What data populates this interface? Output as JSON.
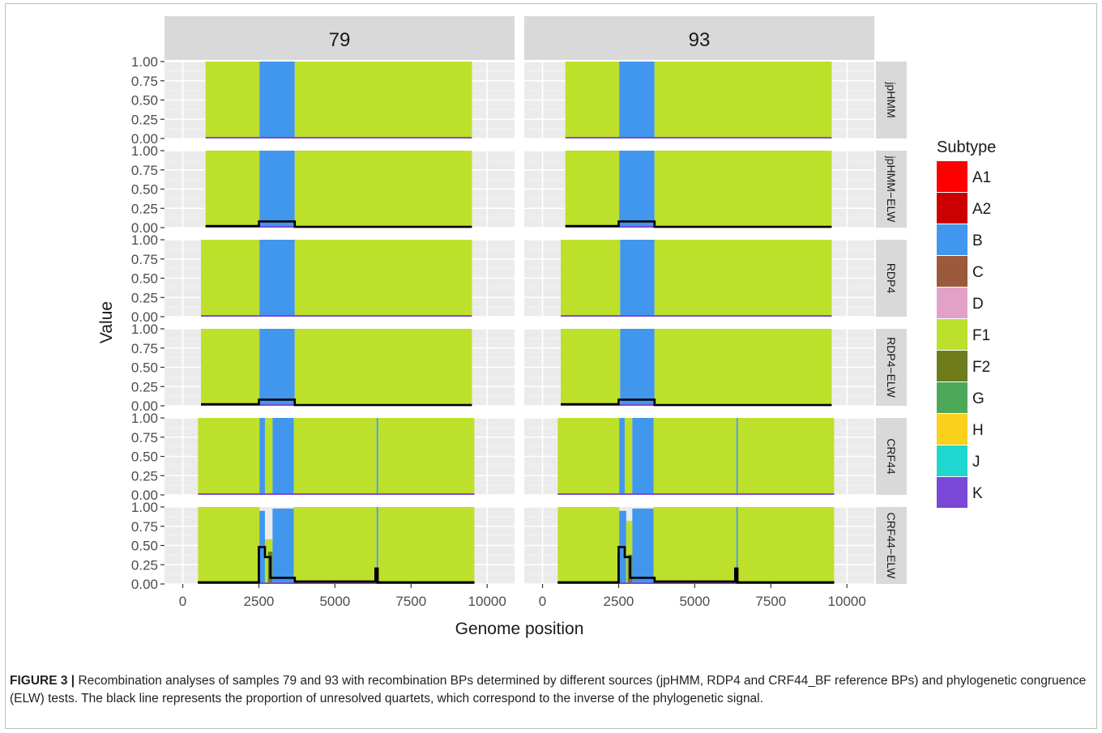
{
  "chart_data": {
    "type": "area",
    "facet_columns": [
      "79",
      "93"
    ],
    "facet_rows": [
      "jpHMM",
      "jpHMM−ELW",
      "RDP4",
      "RDP4−ELW",
      "CRF44",
      "CRF44−ELW"
    ],
    "xlabel": "Genome position",
    "ylabel": "Value",
    "xlim": [
      -600,
      10900
    ],
    "ylim": [
      0,
      1
    ],
    "x_ticks": [
      0,
      2500,
      5000,
      7500,
      10000
    ],
    "x_tick_labels": [
      "0",
      "2500",
      "5000",
      "7500",
      "10000"
    ],
    "y_ticks": [
      0,
      0.25,
      0.5,
      0.75,
      1.0
    ],
    "y_tick_labels": [
      "0.00",
      "0.25",
      "0.50",
      "0.75",
      "1.00"
    ],
    "grid": true,
    "legend": {
      "title": "Subtype",
      "position": "right",
      "entries": [
        {
          "label": "A1",
          "color": "#ff0000"
        },
        {
          "label": "A2",
          "color": "#cc0000"
        },
        {
          "label": "B",
          "color": "#4196ee"
        },
        {
          "label": "C",
          "color": "#9c5a3c"
        },
        {
          "label": "D",
          "color": "#e2a2c8"
        },
        {
          "label": "F1",
          "color": "#bde02a"
        },
        {
          "label": "F2",
          "color": "#6e7c1c"
        },
        {
          "label": "G",
          "color": "#4ea85a"
        },
        {
          "label": "H",
          "color": "#f9d01a"
        },
        {
          "label": "J",
          "color": "#20d6d0"
        },
        {
          "label": "K",
          "color": "#7b47d6"
        }
      ]
    },
    "panels": [
      {
        "row": "jpHMM",
        "col": "79",
        "range": [
          750,
          9500
        ],
        "k_value": 0.02,
        "segments": [
          {
            "start": 750,
            "end": 2520,
            "subtype": "F1"
          },
          {
            "start": 2520,
            "end": 3680,
            "subtype": "B"
          },
          {
            "start": 3680,
            "end": 9500,
            "subtype": "F1"
          }
        ],
        "black_line": []
      },
      {
        "row": "jpHMM",
        "col": "93",
        "range": [
          750,
          9500
        ],
        "k_value": 0.02,
        "segments": [
          {
            "start": 750,
            "end": 2520,
            "subtype": "F1"
          },
          {
            "start": 2520,
            "end": 3680,
            "subtype": "B"
          },
          {
            "start": 3680,
            "end": 9500,
            "subtype": "F1"
          }
        ],
        "black_line": []
      },
      {
        "row": "jpHMM−ELW",
        "col": "79",
        "range": [
          750,
          9500
        ],
        "k_value": 0.02,
        "segments": [
          {
            "start": 750,
            "end": 2520,
            "subtype": "F1"
          },
          {
            "start": 2520,
            "end": 3680,
            "subtype": "B"
          },
          {
            "start": 3680,
            "end": 9500,
            "subtype": "F1"
          }
        ],
        "black_line": [
          [
            750,
            0.02
          ],
          [
            2500,
            0.02
          ],
          [
            2500,
            0.08
          ],
          [
            3680,
            0.08
          ],
          [
            3680,
            0.01
          ],
          [
            9500,
            0.01
          ]
        ]
      },
      {
        "row": "jpHMM−ELW",
        "col": "93",
        "range": [
          750,
          9500
        ],
        "k_value": 0.02,
        "segments": [
          {
            "start": 750,
            "end": 2520,
            "subtype": "F1"
          },
          {
            "start": 2520,
            "end": 3680,
            "subtype": "B"
          },
          {
            "start": 3680,
            "end": 9500,
            "subtype": "F1"
          }
        ],
        "black_line": [
          [
            750,
            0.02
          ],
          [
            2500,
            0.02
          ],
          [
            2500,
            0.08
          ],
          [
            3680,
            0.08
          ],
          [
            3680,
            0.01
          ],
          [
            9500,
            0.01
          ]
        ]
      },
      {
        "row": "RDP4",
        "col": "79",
        "range": [
          600,
          9500
        ],
        "k_value": 0.02,
        "segments": [
          {
            "start": 600,
            "end": 2520,
            "subtype": "F1"
          },
          {
            "start": 2520,
            "end": 3680,
            "subtype": "B"
          },
          {
            "start": 3680,
            "end": 9500,
            "subtype": "F1"
          }
        ],
        "black_line": []
      },
      {
        "row": "RDP4",
        "col": "93",
        "range": [
          600,
          9500
        ],
        "k_value": 0.02,
        "segments": [
          {
            "start": 600,
            "end": 2550,
            "subtype": "F1"
          },
          {
            "start": 2550,
            "end": 3680,
            "subtype": "B"
          },
          {
            "start": 3680,
            "end": 9500,
            "subtype": "F1"
          }
        ],
        "black_line": []
      },
      {
        "row": "RDP4−ELW",
        "col": "79",
        "range": [
          600,
          9500
        ],
        "k_value": 0.02,
        "segments": [
          {
            "start": 600,
            "end": 2520,
            "subtype": "F1"
          },
          {
            "start": 2520,
            "end": 3680,
            "subtype": "B"
          },
          {
            "start": 3680,
            "end": 9500,
            "subtype": "F1"
          }
        ],
        "black_line": [
          [
            600,
            0.02
          ],
          [
            2500,
            0.02
          ],
          [
            2500,
            0.08
          ],
          [
            3680,
            0.08
          ],
          [
            3680,
            0.01
          ],
          [
            9500,
            0.01
          ]
        ]
      },
      {
        "row": "RDP4−ELW",
        "col": "93",
        "range": [
          600,
          9500
        ],
        "k_value": 0.02,
        "segments": [
          {
            "start": 600,
            "end": 2550,
            "subtype": "F1"
          },
          {
            "start": 2550,
            "end": 3680,
            "subtype": "B"
          },
          {
            "start": 3680,
            "end": 9500,
            "subtype": "F1"
          }
        ],
        "black_line": [
          [
            600,
            0.02
          ],
          [
            2500,
            0.02
          ],
          [
            2500,
            0.08
          ],
          [
            3680,
            0.08
          ],
          [
            3680,
            0.01
          ],
          [
            9500,
            0.01
          ]
        ]
      },
      {
        "row": "CRF44",
        "col": "79",
        "range": [
          500,
          9580
        ],
        "k_value": 0.02,
        "segments": [
          {
            "start": 500,
            "end": 2520,
            "subtype": "F1"
          },
          {
            "start": 2520,
            "end": 2700,
            "subtype": "B"
          },
          {
            "start": 2700,
            "end": 2950,
            "subtype": "F1"
          },
          {
            "start": 2950,
            "end": 3650,
            "subtype": "B"
          },
          {
            "start": 3650,
            "end": 6370,
            "subtype": "F1"
          },
          {
            "start": 6370,
            "end": 6420,
            "subtype": "B"
          },
          {
            "start": 6420,
            "end": 9580,
            "subtype": "F1"
          }
        ],
        "black_line": []
      },
      {
        "row": "CRF44",
        "col": "93",
        "range": [
          500,
          9580
        ],
        "k_value": 0.02,
        "segments": [
          {
            "start": 500,
            "end": 2520,
            "subtype": "F1"
          },
          {
            "start": 2520,
            "end": 2700,
            "subtype": "B"
          },
          {
            "start": 2700,
            "end": 2950,
            "subtype": "F1"
          },
          {
            "start": 2950,
            "end": 3650,
            "subtype": "B"
          },
          {
            "start": 3650,
            "end": 6370,
            "subtype": "F1"
          },
          {
            "start": 6370,
            "end": 6420,
            "subtype": "B"
          },
          {
            "start": 6420,
            "end": 9580,
            "subtype": "F1"
          }
        ],
        "black_line": []
      },
      {
        "row": "CRF44−ELW",
        "col": "79",
        "range": [
          500,
          9580
        ],
        "k_value": 0.02,
        "segments": [
          {
            "start": 500,
            "end": 2520,
            "subtype": "F1"
          },
          {
            "start": 2520,
            "end": 2700,
            "subtype": "B"
          },
          {
            "start": 2700,
            "end": 2950,
            "subtype": "F1"
          },
          {
            "start": 2950,
            "end": 3650,
            "subtype": "B"
          },
          {
            "start": 3650,
            "end": 6370,
            "subtype": "F1"
          },
          {
            "start": 6370,
            "end": 6420,
            "subtype": "B"
          },
          {
            "start": 6420,
            "end": 9580,
            "subtype": "F1"
          }
        ],
        "black_line": [
          [
            500,
            0.02
          ],
          [
            2500,
            0.02
          ],
          [
            2500,
            0.48
          ],
          [
            2700,
            0.48
          ],
          [
            2700,
            0.35
          ],
          [
            2880,
            0.35
          ],
          [
            2880,
            0.08
          ],
          [
            3680,
            0.08
          ],
          [
            3680,
            0.03
          ],
          [
            6330,
            0.03
          ],
          [
            6330,
            0.2
          ],
          [
            6400,
            0.2
          ],
          [
            6400,
            0.02
          ],
          [
            9580,
            0.02
          ]
        ]
      },
      {
        "row": "CRF44−ELW",
        "col": "93",
        "range": [
          500,
          9580
        ],
        "k_value": 0.02,
        "segments": [
          {
            "start": 500,
            "end": 2520,
            "subtype": "F1"
          },
          {
            "start": 2520,
            "end": 2700,
            "subtype": "B"
          },
          {
            "start": 2700,
            "end": 2950,
            "subtype": "F1"
          },
          {
            "start": 2950,
            "end": 3650,
            "subtype": "B"
          },
          {
            "start": 3650,
            "end": 6370,
            "subtype": "F1"
          },
          {
            "start": 6370,
            "end": 6420,
            "subtype": "B"
          },
          {
            "start": 6420,
            "end": 9580,
            "subtype": "F1"
          }
        ],
        "black_line": [
          [
            500,
            0.02
          ],
          [
            2500,
            0.02
          ],
          [
            2500,
            0.48
          ],
          [
            2700,
            0.48
          ],
          [
            2700,
            0.35
          ],
          [
            2880,
            0.35
          ],
          [
            2880,
            0.08
          ],
          [
            3680,
            0.08
          ],
          [
            3680,
            0.03
          ],
          [
            6330,
            0.03
          ],
          [
            6330,
            0.2
          ],
          [
            6400,
            0.2
          ],
          [
            6400,
            0.02
          ],
          [
            9580,
            0.02
          ]
        ]
      }
    ],
    "fine_details": {
      "crf44_elw_79": [
        {
          "start": 2520,
          "end": 2700,
          "value": 0.95,
          "subtype": "B"
        },
        {
          "start": 2700,
          "end": 2950,
          "value": 0.58,
          "subtype": "F1"
        },
        {
          "start": 2800,
          "end": 2950,
          "value": 0.42,
          "subtype": "F2"
        },
        {
          "start": 2950,
          "end": 3650,
          "value": 0.98,
          "subtype": "B"
        }
      ],
      "crf44_elw_93": [
        {
          "start": 2520,
          "end": 2750,
          "value": 0.95,
          "subtype": "B"
        },
        {
          "start": 2750,
          "end": 2950,
          "value": 0.82,
          "subtype": "F1"
        },
        {
          "start": 2800,
          "end": 2950,
          "value": 0.38,
          "subtype": "F2"
        },
        {
          "start": 2950,
          "end": 3650,
          "value": 0.98,
          "subtype": "B"
        }
      ]
    }
  },
  "caption": {
    "label": "FIGURE 3 |",
    "text": " Recombination analyses of samples 79 and 93 with recombination BPs determined by different sources (jpHMM, RDP4 and CRF44_BF reference BPs) and phylogenetic congruence (ELW) tests. The black line represents the proportion of unresolved quartets, which correspond to the inverse of the phylogenetic signal."
  }
}
